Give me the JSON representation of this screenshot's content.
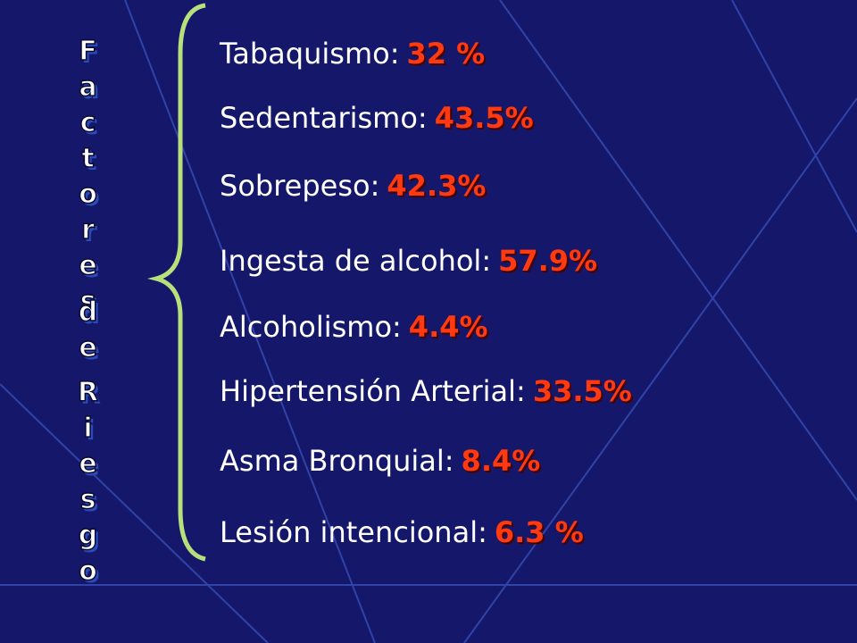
{
  "side_title": [
    "Factores",
    "de",
    "Riesgo"
  ],
  "items": [
    {
      "label": "Tabaquismo:",
      "value": "32 %"
    },
    {
      "label": "Sedentarismo:",
      "value": "43.5%"
    },
    {
      "label": "Sobrepeso:",
      "value": "42.3%"
    },
    {
      "label": "Ingesta de alcohol:",
      "value": "57.9%"
    },
    {
      "label": "Alcoholismo:",
      "value": "4.4%"
    },
    {
      "label": "Hipertensión Arterial:",
      "value": "33.5%"
    },
    {
      "label": "Asma Bronquial:",
      "value": "8.4%"
    },
    {
      "label": "Lesión intencional:",
      "value": "6.3 %"
    }
  ]
}
